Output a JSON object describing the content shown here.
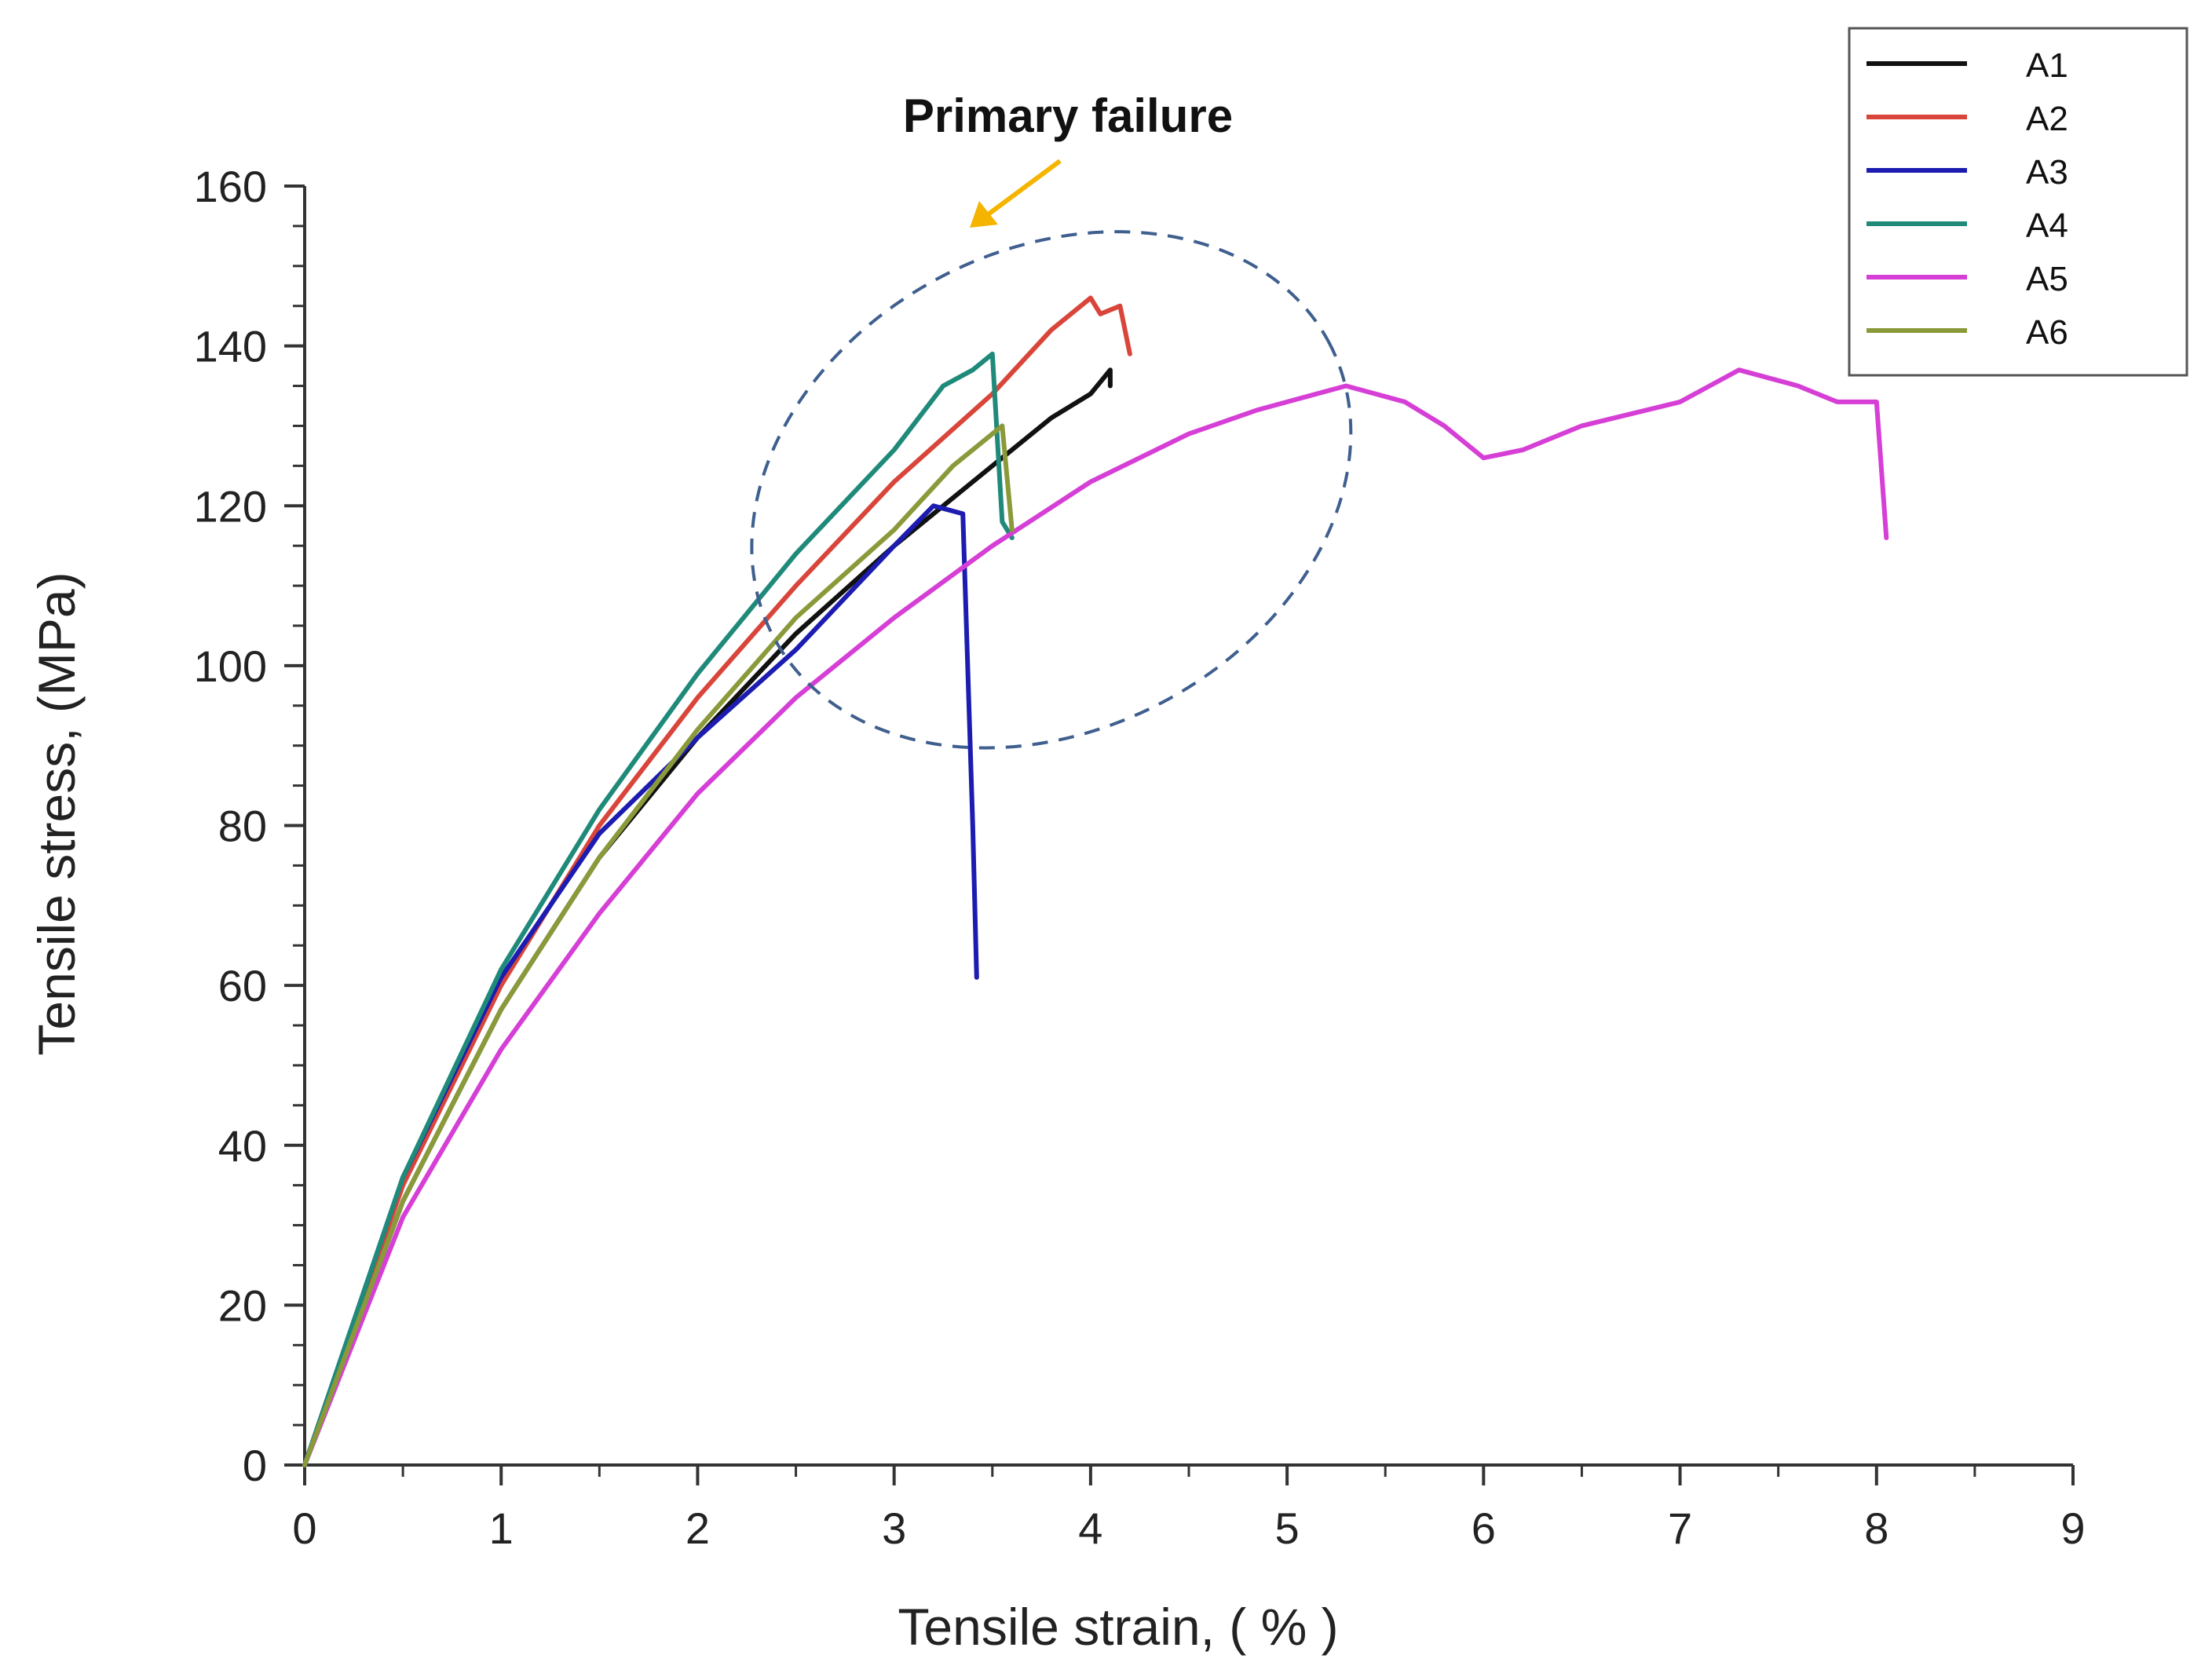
{
  "chart_data": {
    "type": "line",
    "title": "",
    "xlabel": "Tensile strain, ( % )",
    "ylabel": "Tensile stress, (MPa)",
    "xlim": [
      0,
      9
    ],
    "ylim": [
      0,
      160
    ],
    "xticks": [
      "0",
      "1",
      "2",
      "3",
      "4",
      "5",
      "6",
      "7",
      "8",
      "9"
    ],
    "yticks": [
      "0",
      "20",
      "40",
      "60",
      "80",
      "100",
      "120",
      "140",
      "160"
    ],
    "grid": false,
    "legend_position": "top-right",
    "annotation": {
      "text": "Primary failure",
      "ellipse_center": [
        3.8,
        122
      ],
      "ellipse_radii": [
        1.6,
        30
      ],
      "arrow_color": "#f5b400",
      "ellipse_color": "#3f5f8f"
    },
    "series": [
      {
        "name": "A1",
        "color": "#111111",
        "points": [
          [
            0,
            0
          ],
          [
            0.5,
            33
          ],
          [
            1,
            57
          ],
          [
            1.5,
            76
          ],
          [
            2,
            91
          ],
          [
            2.5,
            104
          ],
          [
            3,
            115
          ],
          [
            3.5,
            125
          ],
          [
            3.8,
            131
          ],
          [
            4.0,
            134
          ],
          [
            4.1,
            137
          ],
          [
            4.1,
            135
          ]
        ]
      },
      {
        "name": "A2",
        "color": "#d9453a",
        "points": [
          [
            0,
            0
          ],
          [
            0.5,
            35
          ],
          [
            1,
            60
          ],
          [
            1.5,
            80
          ],
          [
            2,
            96
          ],
          [
            2.5,
            110
          ],
          [
            3,
            123
          ],
          [
            3.5,
            134
          ],
          [
            3.8,
            142
          ],
          [
            4.0,
            146
          ],
          [
            4.05,
            144
          ],
          [
            4.15,
            145
          ],
          [
            4.2,
            139
          ]
        ]
      },
      {
        "name": "A3",
        "color": "#1c1cb0",
        "points": [
          [
            0,
            0
          ],
          [
            0.5,
            36
          ],
          [
            1,
            61
          ],
          [
            1.5,
            79
          ],
          [
            2,
            91
          ],
          [
            2.5,
            102
          ],
          [
            3,
            115
          ],
          [
            3.2,
            120
          ],
          [
            3.35,
            119
          ],
          [
            3.4,
            80
          ],
          [
            3.42,
            61
          ]
        ]
      },
      {
        "name": "A4",
        "color": "#1f8a7a",
        "points": [
          [
            0,
            0
          ],
          [
            0.5,
            36
          ],
          [
            1,
            62
          ],
          [
            1.5,
            82
          ],
          [
            2,
            99
          ],
          [
            2.5,
            114
          ],
          [
            3,
            127
          ],
          [
            3.25,
            135
          ],
          [
            3.4,
            137
          ],
          [
            3.5,
            139
          ],
          [
            3.55,
            118
          ],
          [
            3.6,
            116
          ]
        ]
      },
      {
        "name": "A5",
        "color": "#d63fd6",
        "points": [
          [
            0,
            0
          ],
          [
            0.5,
            31
          ],
          [
            1,
            52
          ],
          [
            1.5,
            69
          ],
          [
            2,
            84
          ],
          [
            2.5,
            96
          ],
          [
            3,
            106
          ],
          [
            3.5,
            115
          ],
          [
            4,
            123
          ],
          [
            4.5,
            129
          ],
          [
            4.85,
            132
          ],
          [
            5,
            133
          ],
          [
            5.3,
            135
          ],
          [
            5.6,
            133
          ],
          [
            5.8,
            130
          ],
          [
            6.0,
            126
          ],
          [
            6.2,
            127
          ],
          [
            6.5,
            130
          ],
          [
            7,
            133
          ],
          [
            7.3,
            137
          ],
          [
            7.6,
            135
          ],
          [
            7.8,
            133
          ],
          [
            8.0,
            133
          ],
          [
            8.05,
            116
          ]
        ]
      },
      {
        "name": "A6",
        "color": "#8a9a3a",
        "points": [
          [
            0,
            0
          ],
          [
            0.5,
            33
          ],
          [
            1,
            57
          ],
          [
            1.5,
            76
          ],
          [
            2,
            92
          ],
          [
            2.5,
            106
          ],
          [
            3,
            117
          ],
          [
            3.3,
            125
          ],
          [
            3.55,
            130
          ],
          [
            3.6,
            117
          ]
        ]
      }
    ]
  }
}
